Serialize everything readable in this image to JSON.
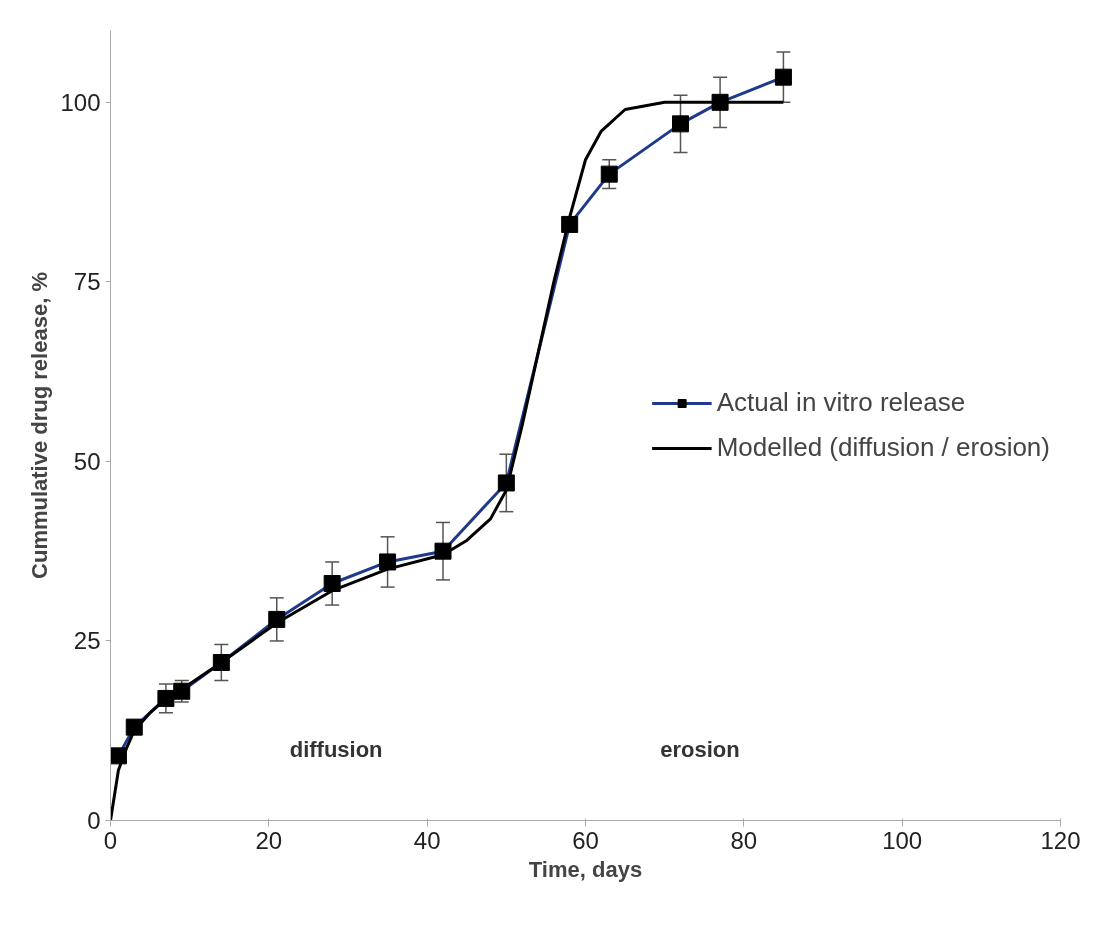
{
  "chart_data": {
    "type": "line",
    "xlabel": "Time, days",
    "ylabel": "Cummulative drug release, %",
    "xlim": [
      0,
      120
    ],
    "ylim": [
      0,
      110
    ],
    "xticks": [
      0,
      20,
      40,
      60,
      80,
      100,
      120
    ],
    "yticks": [
      0,
      25,
      50,
      75,
      100
    ],
    "grid": false,
    "legend": "center right",
    "series": [
      {
        "name": "Actual in vitro release",
        "color": "#1f3a8a",
        "marker": "square",
        "x": [
          1,
          3,
          7,
          9,
          14,
          21,
          28,
          35,
          42,
          50,
          58,
          63,
          72,
          77,
          85
        ],
        "values": [
          9,
          13,
          17,
          18,
          22,
          28,
          33,
          36,
          37.5,
          47,
          83,
          90,
          97,
          100,
          103.5
        ],
        "errors": [
          null,
          1,
          2,
          1.5,
          2.5,
          3,
          3,
          3.5,
          4,
          4,
          1,
          2,
          4,
          3.5,
          3.5
        ]
      },
      {
        "name": "Modelled (diffusion / erosion)",
        "color": "#000000",
        "marker": "none",
        "x": [
          0,
          1,
          2,
          3,
          5,
          7,
          10,
          14,
          21,
          28,
          35,
          42,
          45,
          48,
          50,
          52,
          54,
          56,
          58,
          60,
          62,
          65,
          70,
          75,
          85
        ],
        "values": [
          0,
          7,
          10,
          12.5,
          15,
          17,
          19,
          22,
          27.5,
          32,
          35,
          37,
          39,
          42,
          46,
          55,
          65,
          75,
          84,
          92,
          96,
          99,
          100,
          100,
          100
        ]
      }
    ],
    "annotations": [
      "diffusion",
      "erosion"
    ]
  }
}
